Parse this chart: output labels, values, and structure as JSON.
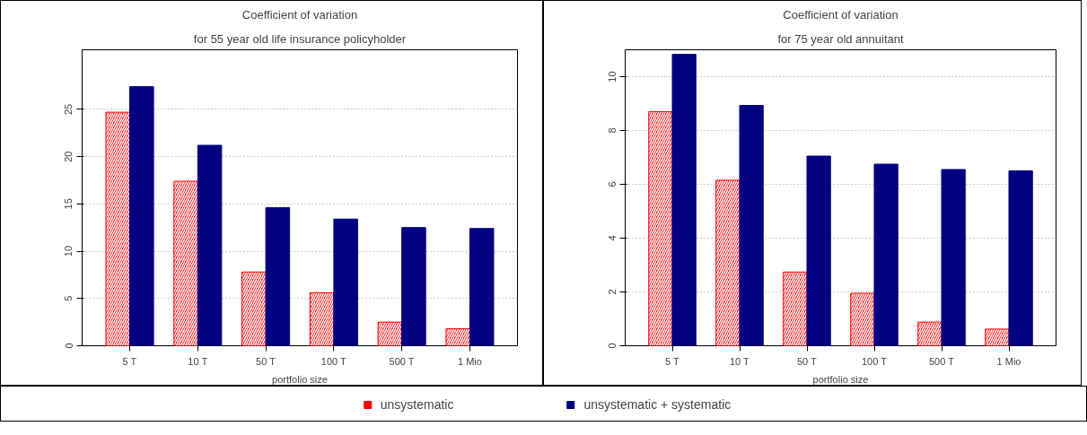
{
  "chart_data": [
    {
      "type": "bar",
      "title": "Coefficient of variation",
      "subtitle": "for 55 year old life insurance policyholder",
      "xlabel": "portfolio size",
      "categories": [
        "5 T",
        "10 T",
        "50 T",
        "100 T",
        "500 T",
        "1 Mio"
      ],
      "series": [
        {
          "name": "unsystematic",
          "color": "#ff0000",
          "values": [
            24.7,
            17.4,
            7.8,
            5.6,
            2.5,
            1.8
          ]
        },
        {
          "name": "unsystematic + systematic",
          "color": "#000080",
          "values": [
            27.4,
            21.2,
            14.6,
            13.4,
            12.5,
            12.4
          ]
        }
      ],
      "ylim": [
        0,
        31.3
      ],
      "yticks": [
        0,
        5,
        10,
        15,
        20,
        25
      ],
      "grid": "y",
      "legend": "bottom"
    },
    {
      "type": "bar",
      "title": "Coefficient of variation",
      "subtitle": "for 75 year old annuitant",
      "xlabel": "portfolio size",
      "categories": [
        "5 T",
        "10 T",
        "50 T",
        "100 T",
        "500 T",
        "1 Mio"
      ],
      "series": [
        {
          "color": "#ff0000",
          "values": [
            8.7,
            6.15,
            2.74,
            1.95,
            0.88,
            0.62
          ]
        },
        {
          "color": "#000080",
          "values": [
            10.83,
            8.93,
            7.05,
            6.75,
            6.55,
            6.5
          ]
        }
      ],
      "ylim": [
        0,
        11.0
      ],
      "yticks": [
        0,
        2,
        4,
        6,
        8,
        10
      ],
      "grid": "y"
    }
  ]
}
